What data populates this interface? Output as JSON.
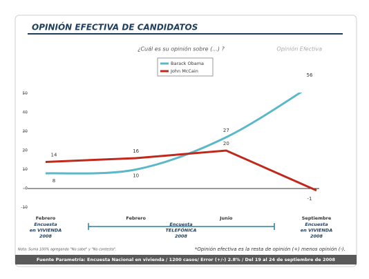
{
  "chart_data": {
    "type": "line",
    "title": "OPINIÓN EFECTIVA DE CANDIDATOS",
    "subtitle": "¿Cuál es su opinión sobre (...) ?",
    "subtitle_right": "Opinión Efectiva",
    "categories": [
      "Febrero",
      "Febrero",
      "Junio",
      "Septiembre"
    ],
    "series": [
      {
        "name": "Barack Obama",
        "color": "#5bb8c9",
        "values": [
          8,
          10,
          27,
          56
        ]
      },
      {
        "name": "John McCain",
        "color": "#c0281c",
        "values": [
          14,
          16,
          20,
          -1
        ]
      }
    ],
    "ylim": [
      -10,
      50
    ],
    "yticks": [
      -10,
      0,
      10,
      20,
      30,
      40,
      50
    ],
    "grid": false,
    "annotations": {
      "survey_start": [
        "Encuesta",
        "en VIVIENDA",
        "2008"
      ],
      "survey_phone": [
        "Encuesta",
        "TELEFÓNICA",
        "2008"
      ],
      "survey_end": [
        "Encuesta",
        "en VIVIENDA",
        "2008"
      ]
    },
    "note": "Nota: Suma 100% agregando \"No sabe\" y \"No contesta\".",
    "footnote": "*Opinión efectiva es la resta de opinión (+) menos opinión (-).",
    "source": "Fuente Parametría: Encuesta Nacional en vivienda / 1200 casos/ Error (+/-) 2.8% / Del 19 al 24 de septiembre de 2008"
  }
}
